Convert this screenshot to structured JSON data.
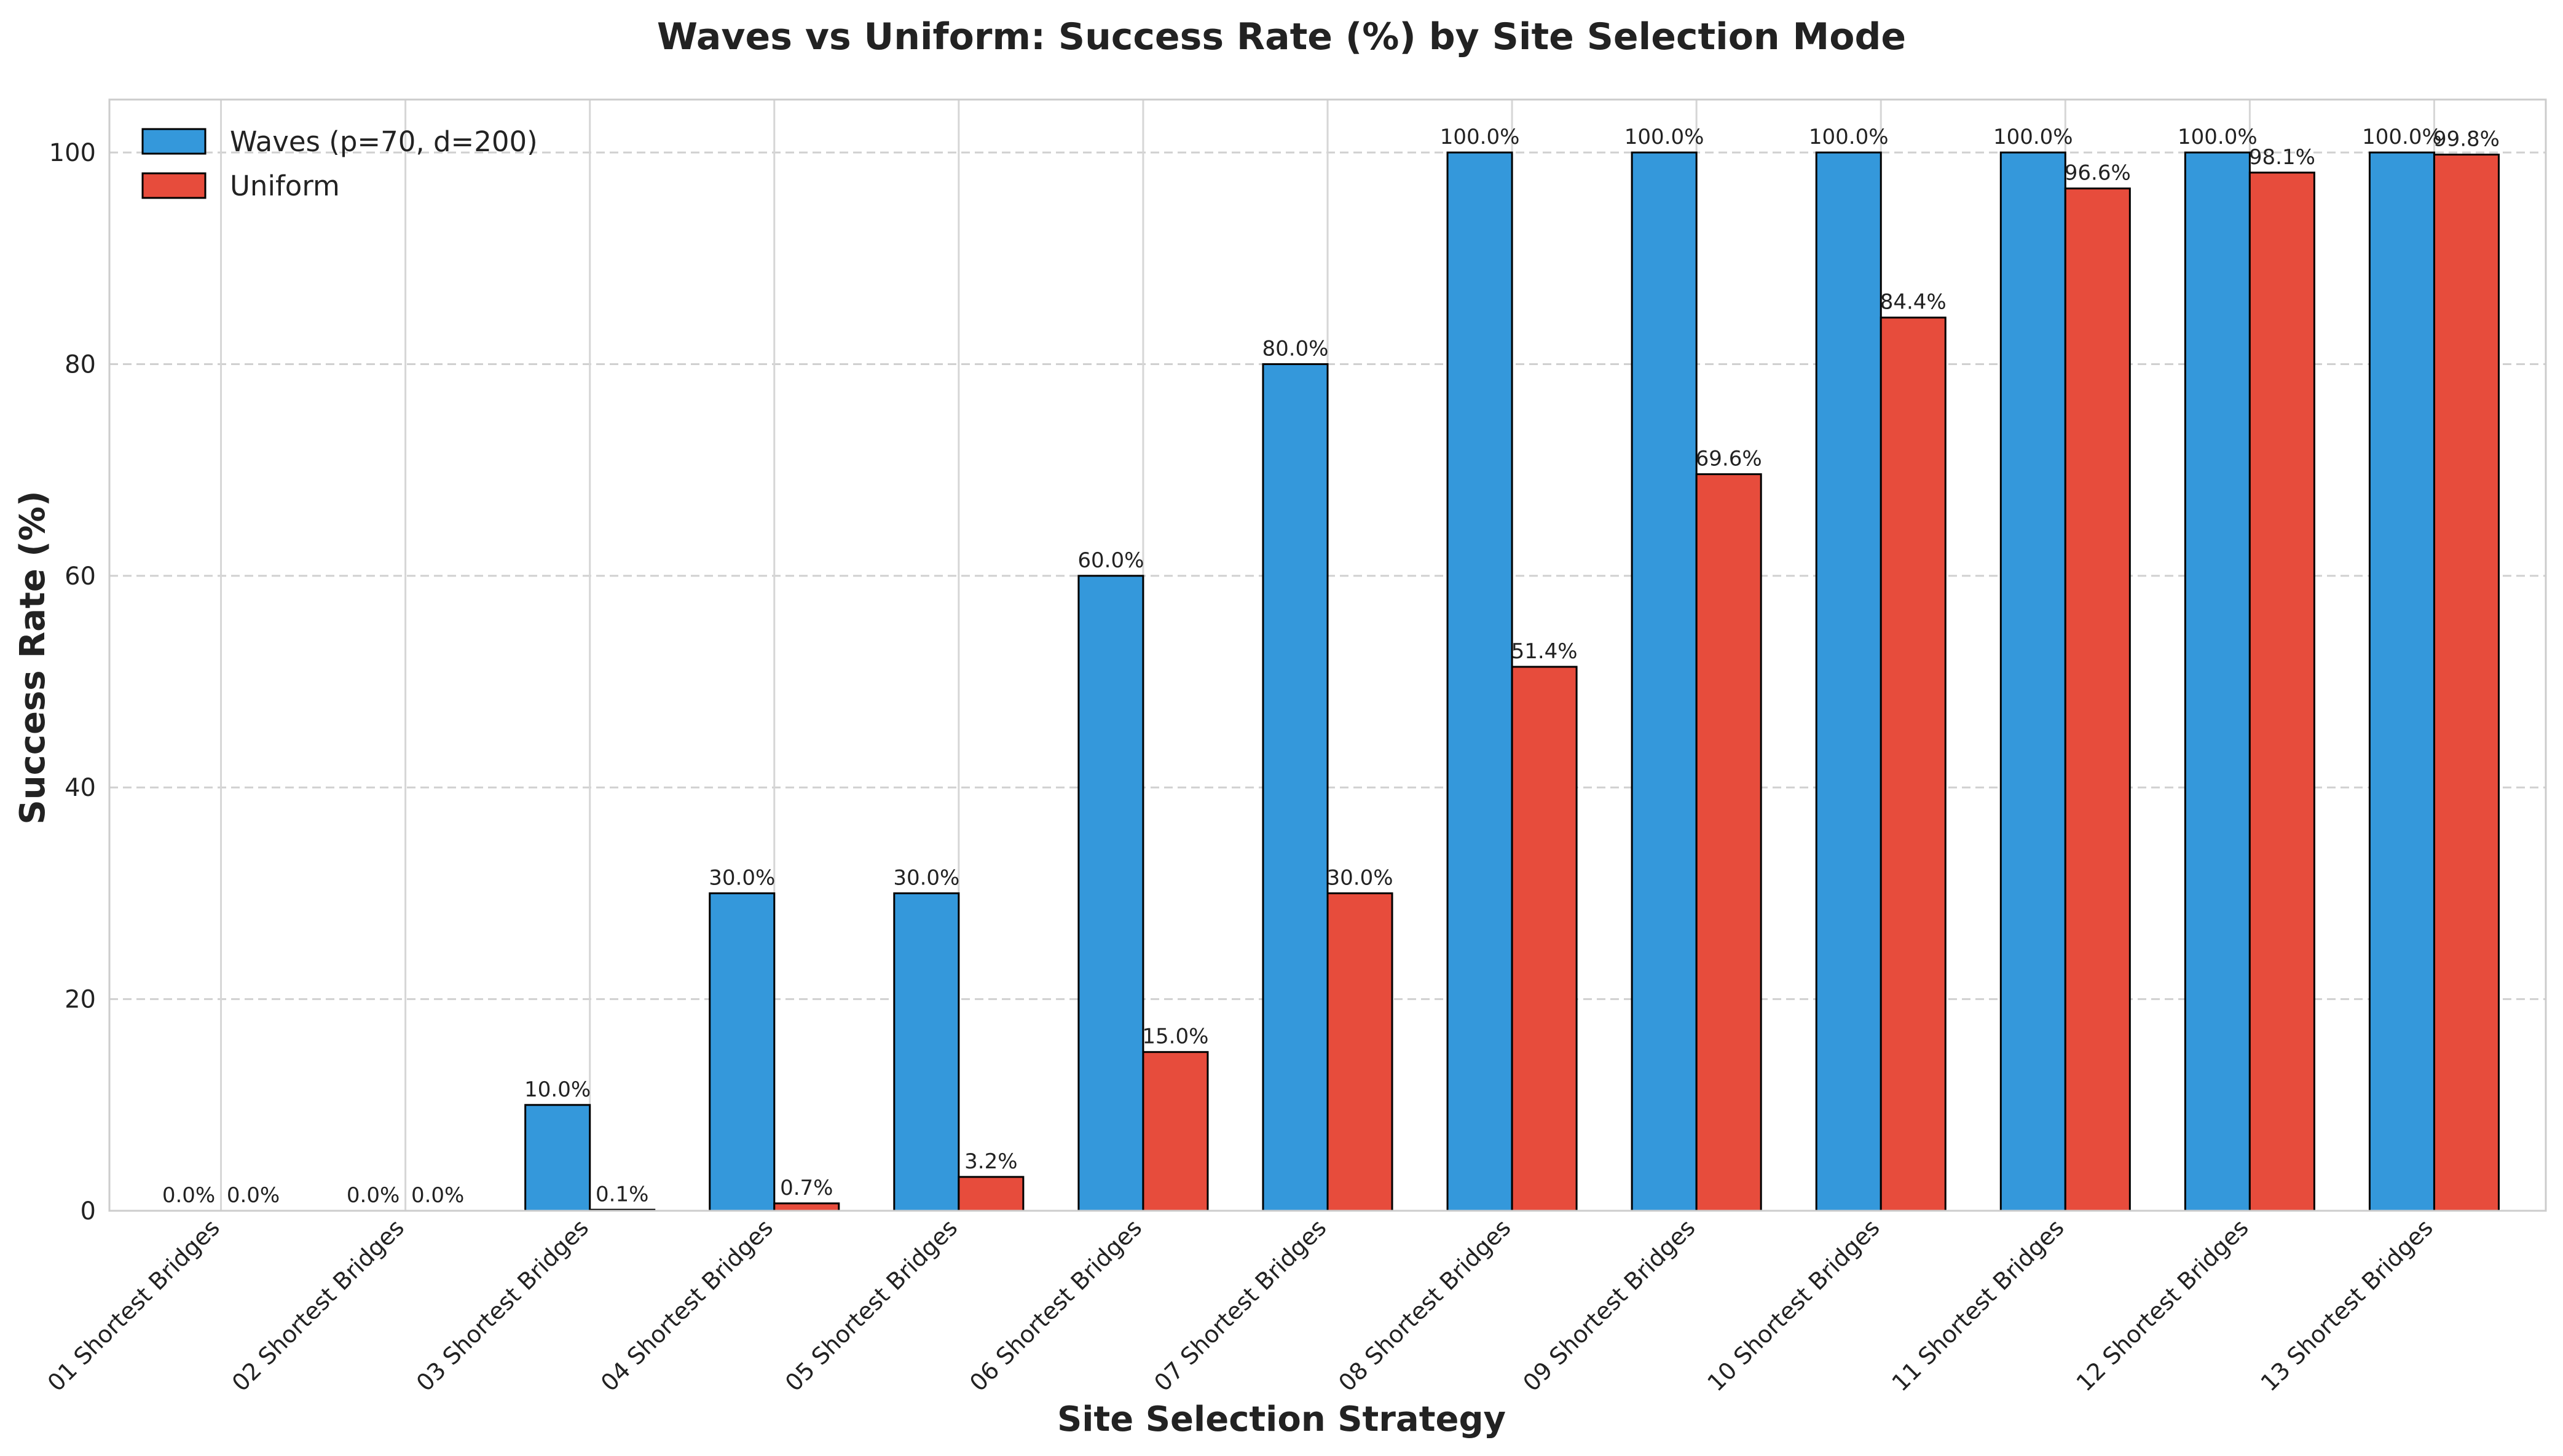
{
  "chart_data": {
    "type": "bar",
    "title": "Waves vs Uniform: Success Rate (%) by Site Selection Mode",
    "xlabel": "Site Selection Strategy",
    "ylabel": "Success Rate (%)",
    "ylim": [
      0,
      105
    ],
    "yticks": [
      0,
      20,
      40,
      60,
      80,
      100
    ],
    "ytick_labels": [
      "0",
      "20",
      "40",
      "60",
      "80",
      "100"
    ],
    "grid": true,
    "legend_position": "top-left",
    "categories": [
      "01 Shortest Bridges",
      "02 Shortest Bridges",
      "03 Shortest Bridges",
      "04 Shortest Bridges",
      "05 Shortest Bridges",
      "06 Shortest Bridges",
      "07 Shortest Bridges",
      "08 Shortest Bridges",
      "09 Shortest Bridges",
      "10 Shortest Bridges",
      "11 Shortest Bridges",
      "12 Shortest Bridges",
      "13 Shortest Bridges"
    ],
    "series": [
      {
        "name": "Waves (p=70, d=200)",
        "color": "#3498db",
        "values": [
          0,
          0,
          10,
          30,
          30,
          60,
          80,
          100,
          100,
          100,
          100,
          100,
          100
        ],
        "labels": [
          "0.0%",
          "0.0%",
          "10.0%",
          "30.0%",
          "30.0%",
          "60.0%",
          "80.0%",
          "100.0%",
          "100.0%",
          "100.0%",
          "100.0%",
          "100.0%",
          "100.0%"
        ]
      },
      {
        "name": "Uniform",
        "color": "#e74c3c",
        "values": [
          0,
          0,
          0.1,
          0.7,
          3.2,
          15.0,
          30.0,
          51.4,
          69.6,
          84.4,
          96.6,
          98.1,
          99.8
        ],
        "labels": [
          "0.0%",
          "0.0%",
          "0.1%",
          "0.7%",
          "3.2%",
          "15.0%",
          "30.0%",
          "51.4%",
          "69.6%",
          "84.4%",
          "96.6%",
          "98.1%",
          "99.8%"
        ]
      }
    ]
  }
}
